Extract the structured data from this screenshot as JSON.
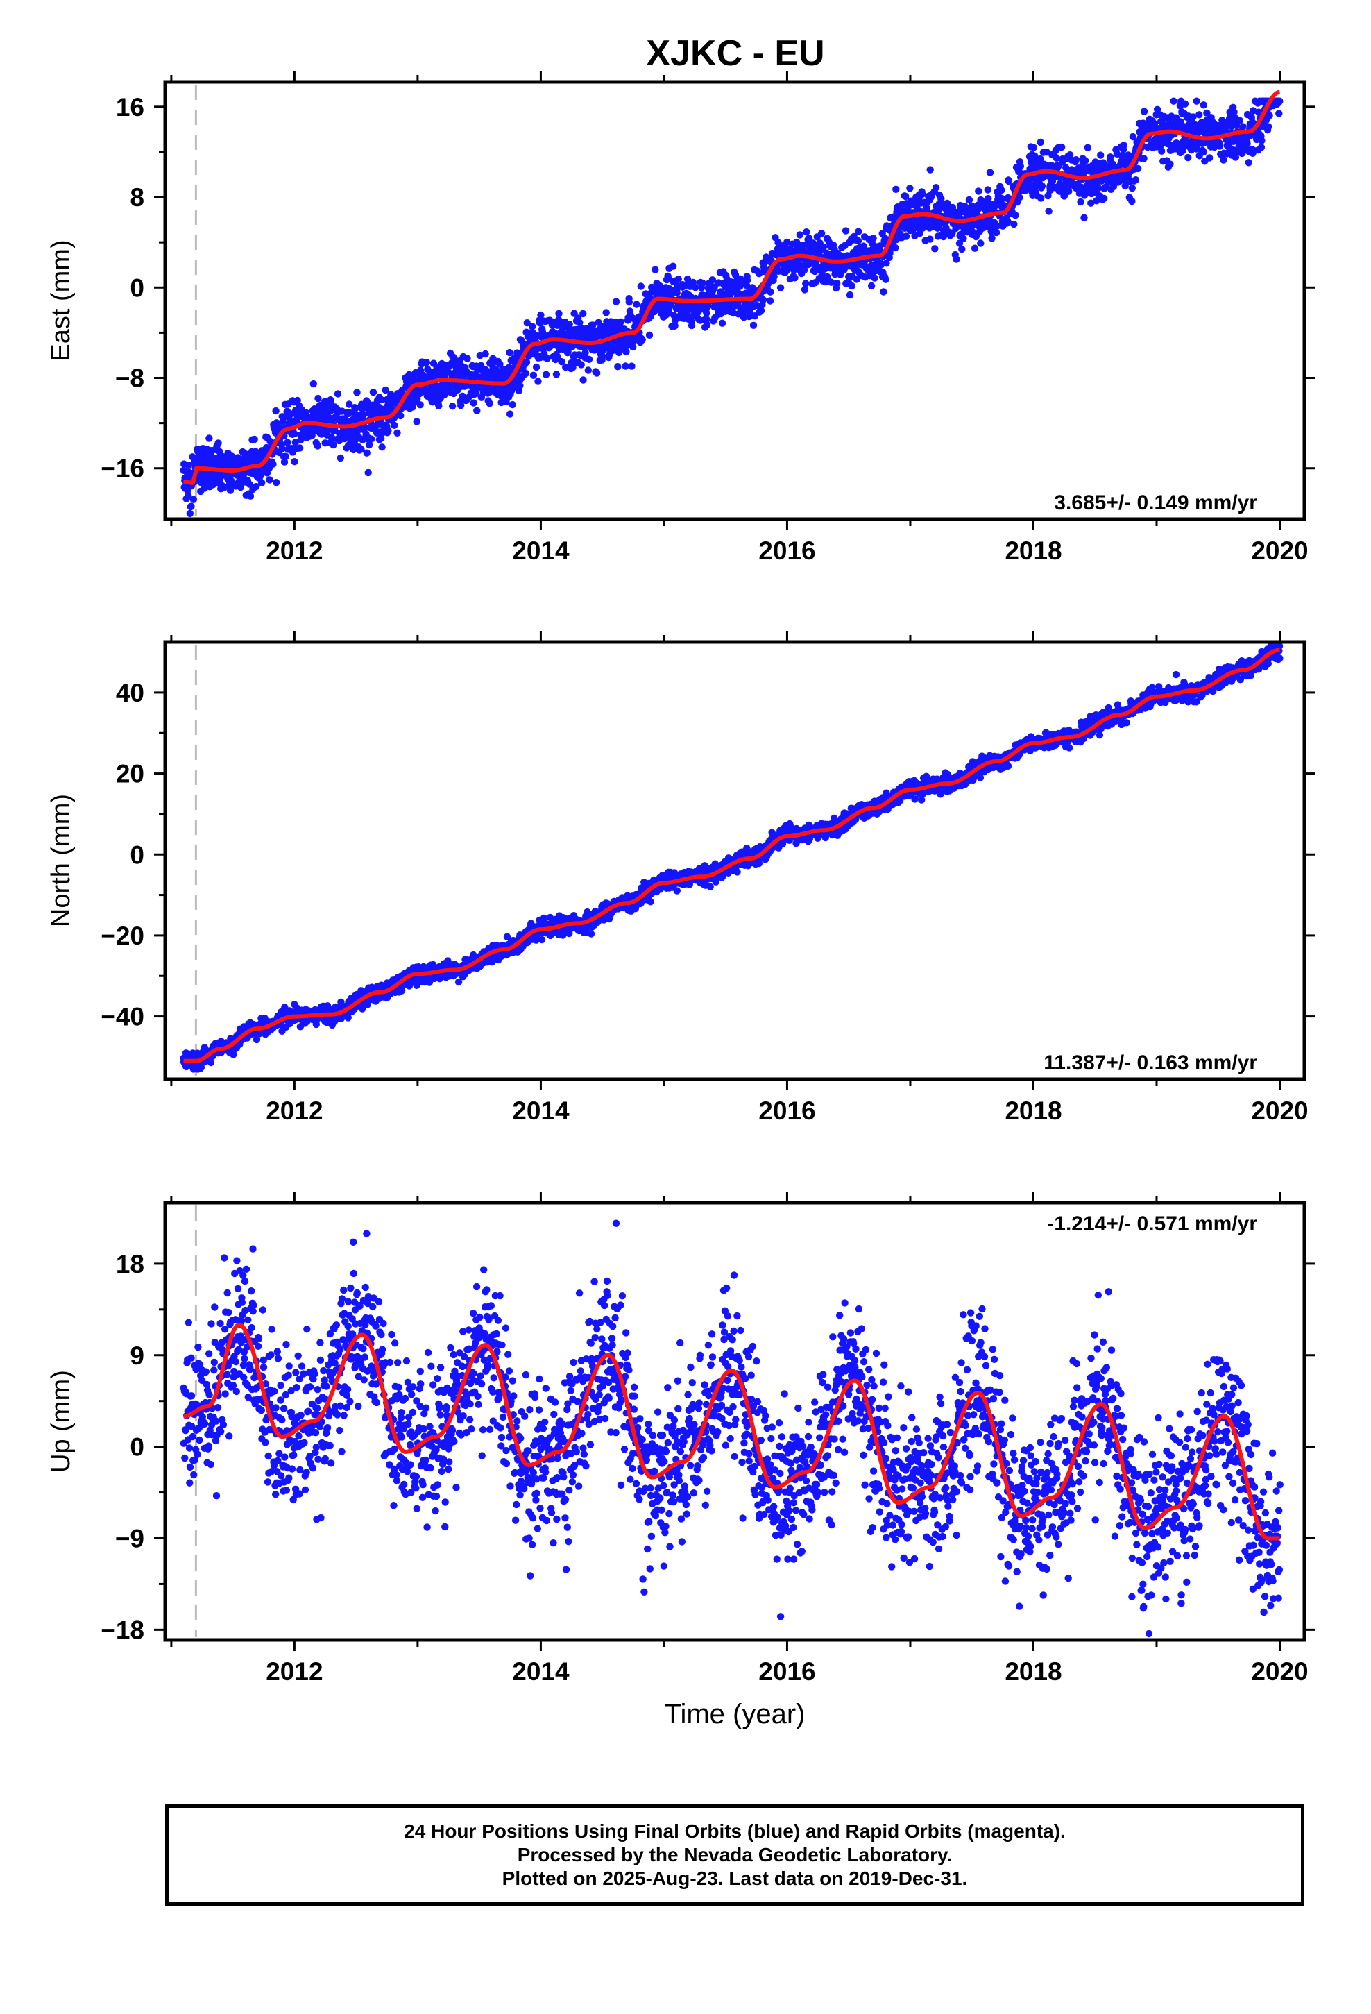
{
  "title": "XJKC - EU",
  "colors": {
    "data": "#1414ff",
    "model": "#ff1414",
    "marker_line": "#bbbbbb",
    "frame": "#000000"
  },
  "chart_data": [
    {
      "type": "scatter",
      "component": "east",
      "ylabel": "East (mm)",
      "xlabel": "",
      "ylim": [
        -20.5,
        18.2
      ],
      "xlim": [
        2010.95,
        2020.2
      ],
      "yticks": [
        16,
        8,
        0,
        -8,
        -16
      ],
      "xticks": [
        2012,
        2014,
        2016,
        2018,
        2020
      ],
      "rate_label": "3.685+/- 0.149 mm/yr",
      "rate_position": "bottom-right",
      "marker_line_x": 2011.2,
      "model_series": {
        "name": "model",
        "x": [
          2011.1,
          2011.18,
          2011.2,
          2011.5,
          2011.7,
          2011.95,
          2012.1,
          2012.4,
          2012.75,
          2013.0,
          2013.2,
          2013.7,
          2013.95,
          2014.1,
          2014.4,
          2014.75,
          2014.95,
          2015.2,
          2015.7,
          2015.95,
          2016.1,
          2016.4,
          2016.75,
          2016.95,
          2017.1,
          2017.4,
          2017.75,
          2017.95,
          2018.1,
          2018.4,
          2018.75,
          2018.95,
          2019.1,
          2019.4,
          2019.75,
          2020.0
        ],
        "y": [
          -17.2,
          -17.3,
          -16.0,
          -16.2,
          -15.8,
          -12.5,
          -12.0,
          -12.3,
          -11.5,
          -8.6,
          -8.2,
          -8.5,
          -5.0,
          -4.6,
          -4.9,
          -4.0,
          -1.0,
          -1.2,
          -1.0,
          2.5,
          2.8,
          2.3,
          2.8,
          6.3,
          6.5,
          5.9,
          6.6,
          10.0,
          10.3,
          9.7,
          10.4,
          13.6,
          13.8,
          13.2,
          13.8,
          17.3
        ]
      },
      "points_generator": {
        "description": "approx. daily samples following the model curve",
        "count": 3100,
        "noise_std": [
          1.0,
          1.2
        ],
        "y_range": [
          -20.0,
          16.5
        ]
      }
    },
    {
      "type": "scatter",
      "component": "north",
      "ylabel": "North (mm)",
      "xlabel": "",
      "ylim": [
        -55.5,
        52.5
      ],
      "xlim": [
        2010.95,
        2020.2
      ],
      "yticks": [
        40,
        20,
        0,
        -20,
        -40
      ],
      "xticks": [
        2012,
        2014,
        2016,
        2018,
        2020
      ],
      "rate_label": "11.387+/- 0.163 mm/yr",
      "rate_position": "bottom-right",
      "marker_line_x": 2011.2,
      "model_series": {
        "name": "model",
        "x": [
          2011.1,
          2011.2,
          2011.4,
          2011.7,
          2012.0,
          2012.3,
          2012.7,
          2013.0,
          2013.3,
          2013.7,
          2014.0,
          2014.3,
          2014.7,
          2015.0,
          2015.3,
          2015.7,
          2016.0,
          2016.3,
          2016.7,
          2017.0,
          2017.3,
          2017.7,
          2018.0,
          2018.3,
          2018.7,
          2019.0,
          2019.3,
          2019.7,
          2020.0
        ],
        "y": [
          -51.0,
          -51.0,
          -48.0,
          -43.0,
          -40.0,
          -39.5,
          -34.0,
          -29.5,
          -28.5,
          -23.5,
          -18.5,
          -17.0,
          -12.0,
          -7.0,
          -5.5,
          -1.0,
          4.5,
          6.0,
          11.5,
          16.0,
          17.5,
          23.0,
          27.5,
          29.0,
          34.5,
          39.0,
          40.5,
          45.5,
          50.5
        ]
      },
      "points_generator": {
        "description": "approx. daily samples following the model curve",
        "count": 3100,
        "noise_std": [
          0.9,
          1.1
        ],
        "y_range": [
          -53.0,
          51.5
        ]
      }
    },
    {
      "type": "scatter",
      "component": "up",
      "ylabel": "Up (mm)",
      "xlabel": "Time (year)",
      "ylim": [
        -19.0,
        24.0
      ],
      "xlim": [
        2010.95,
        2020.2
      ],
      "yticks": [
        18,
        9,
        0,
        -9,
        -18
      ],
      "xticks": [
        2012,
        2014,
        2016,
        2018,
        2020
      ],
      "rate_label": "-1.214+/- 0.571 mm/yr",
      "rate_position": "top-right",
      "marker_line_x": 2011.2,
      "model_series": {
        "name": "model",
        "x": [
          2011.1,
          2011.3,
          2011.55,
          2011.9,
          2012.15,
          2012.55,
          2012.9,
          2013.15,
          2013.55,
          2013.9,
          2014.15,
          2014.55,
          2014.9,
          2015.15,
          2015.55,
          2015.9,
          2016.15,
          2016.55,
          2016.9,
          2017.15,
          2017.55,
          2017.9,
          2018.15,
          2018.55,
          2018.9,
          2019.15,
          2019.55,
          2019.9,
          2020.0
        ],
        "y": [
          3.0,
          4.0,
          12.0,
          1.0,
          2.5,
          11.0,
          -0.5,
          1.0,
          10.0,
          -1.8,
          -0.5,
          9.0,
          -3.0,
          -1.5,
          7.5,
          -4.0,
          -2.5,
          6.5,
          -5.5,
          -4.0,
          5.3,
          -6.8,
          -5.0,
          4.2,
          -8.0,
          -6.0,
          3.0,
          -9.0,
          -9.0
        ]
      },
      "points_generator": {
        "description": "approx. daily samples following the model curve",
        "count": 2900,
        "noise_std": [
          3.0,
          4.5
        ],
        "y_range": [
          -18.8,
          23.5
        ]
      }
    }
  ],
  "caption_lines": [
    "24 Hour Positions Using Final Orbits (blue) and Rapid Orbits (magenta).",
    "Processed by the Nevada Geodetic Laboratory.",
    "Plotted on 2025-Aug-23. Last data on 2019-Dec-31."
  ]
}
